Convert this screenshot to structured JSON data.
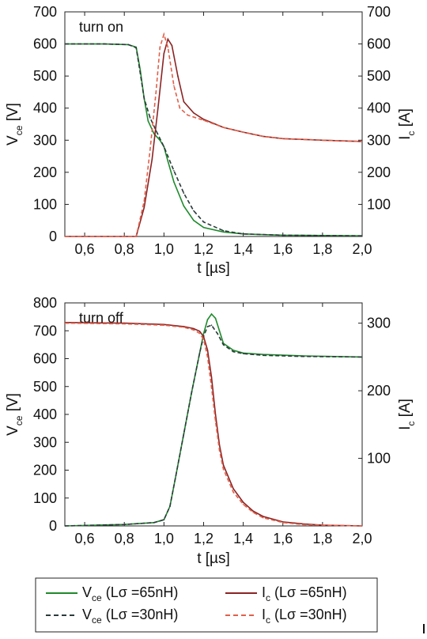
{
  "colors": {
    "vce_65": "#1f8a2c",
    "vce_30": "#2a3a3a",
    "ic_65": "#8b2323",
    "ic_30": "#e0604a"
  },
  "legend": [
    {
      "symbol": "V",
      "sub": "ce",
      "text": " (Lσ =65nH)",
      "color_key": "vce_65",
      "dash": false
    },
    {
      "symbol": "I",
      "sub": "c",
      "text": " (Lσ =65nH)",
      "color_key": "ic_65",
      "dash": false
    },
    {
      "symbol": "V",
      "sub": "ce",
      "text": " (Lσ =30nH)",
      "color_key": "vce_30",
      "dash": true
    },
    {
      "symbol": "I",
      "sub": "c",
      "text": " (Lσ =30nH)",
      "color_key": "ic_30",
      "dash": true
    }
  ],
  "chart_data": [
    {
      "type": "line",
      "panel_label": "turn on",
      "xlabel": "t [µs]",
      "ylabel_left": {
        "symbol": "V",
        "sub": "ce",
        "unit": " [V]"
      },
      "ylabel_right": {
        "symbol": "I",
        "sub": "c",
        "unit": " [A]"
      },
      "xlim": [
        0.5,
        2.0
      ],
      "ylim_left": [
        0,
        700
      ],
      "ylim_right": [
        0,
        700
      ],
      "xticks": [
        "0,6",
        "0,8",
        "1,0",
        "1,2",
        "1,4",
        "1,6",
        "1,8",
        "2,0"
      ],
      "xtick_values": [
        0.6,
        0.8,
        1.0,
        1.2,
        1.4,
        1.6,
        1.8,
        2.0
      ],
      "yticks_left": [
        0,
        100,
        200,
        300,
        400,
        500,
        600,
        700
      ],
      "yticks_right": [
        100,
        200,
        300,
        400,
        500,
        600,
        700
      ],
      "series": [
        {
          "name": "Vce (Lσ =65nH)",
          "axis": "left",
          "color_key": "vce_65",
          "dash": false,
          "x": [
            0.5,
            0.7,
            0.82,
            0.86,
            0.88,
            0.9,
            0.92,
            0.95,
            0.98,
            1.0,
            1.02,
            1.05,
            1.1,
            1.15,
            1.2,
            1.3,
            1.4,
            1.6,
            2.0
          ],
          "y": [
            600,
            600,
            598,
            590,
            520,
            430,
            360,
            320,
            300,
            280,
            235,
            170,
            95,
            50,
            28,
            14,
            8,
            4,
            2
          ]
        },
        {
          "name": "Vce (Lσ =30nH)",
          "axis": "left",
          "color_key": "vce_30",
          "dash": true,
          "x": [
            0.5,
            0.7,
            0.82,
            0.86,
            0.88,
            0.9,
            0.93,
            0.96,
            1.0,
            1.05,
            1.1,
            1.15,
            1.2,
            1.3,
            1.4,
            1.6,
            2.0
          ],
          "y": [
            600,
            600,
            598,
            588,
            510,
            430,
            370,
            330,
            280,
            205,
            135,
            80,
            45,
            18,
            8,
            4,
            2
          ]
        },
        {
          "name": "Ic (Lσ =65nH)",
          "axis": "right",
          "color_key": "ic_65",
          "dash": false,
          "x": [
            0.5,
            0.8,
            0.86,
            0.9,
            0.94,
            0.97,
            1.0,
            1.02,
            1.04,
            1.07,
            1.1,
            1.15,
            1.2,
            1.3,
            1.4,
            1.5,
            1.6,
            1.8,
            2.0
          ],
          "y": [
            0,
            0,
            0,
            90,
            240,
            400,
            570,
            615,
            595,
            500,
            420,
            385,
            365,
            340,
            325,
            312,
            305,
            300,
            296
          ]
        },
        {
          "name": "Ic (Lσ =30nH)",
          "axis": "right",
          "color_key": "ic_30",
          "dash": true,
          "x": [
            0.5,
            0.8,
            0.86,
            0.9,
            0.93,
            0.96,
            0.98,
            1.0,
            1.02,
            1.05,
            1.08,
            1.12,
            1.2,
            1.3,
            1.4,
            1.5,
            1.6,
            1.8,
            2.0
          ],
          "y": [
            0,
            0,
            0,
            110,
            270,
            450,
            590,
            630,
            590,
            470,
            400,
            378,
            362,
            340,
            325,
            312,
            305,
            300,
            296
          ]
        }
      ]
    },
    {
      "type": "line",
      "panel_label": "turn off",
      "xlabel": "t [µs]",
      "ylabel_left": {
        "symbol": "V",
        "sub": "ce",
        "unit": " [V]"
      },
      "ylabel_right": {
        "symbol": "I",
        "sub": "c",
        "unit": " [A]"
      },
      "xlim": [
        0.5,
        2.0
      ],
      "ylim_left": [
        0,
        800
      ],
      "ylim_right": [
        0,
        330
      ],
      "xticks": [
        "0,6",
        "0,8",
        "1,0",
        "1,2",
        "1,4",
        "1,6",
        "1,8",
        "2,0"
      ],
      "xtick_values": [
        0.6,
        0.8,
        1.0,
        1.2,
        1.4,
        1.6,
        1.8,
        2.0
      ],
      "yticks_left": [
        0,
        100,
        200,
        300,
        400,
        500,
        600,
        700,
        800
      ],
      "yticks_right": [
        100,
        200,
        300
      ],
      "series": [
        {
          "name": "Vce (Lσ =65nH)",
          "axis": "left",
          "color_key": "vce_65",
          "dash": false,
          "x": [
            0.5,
            0.8,
            0.95,
            1.0,
            1.03,
            1.06,
            1.1,
            1.14,
            1.18,
            1.2,
            1.22,
            1.24,
            1.26,
            1.28,
            1.3,
            1.35,
            1.4,
            1.5,
            1.7,
            2.0
          ],
          "y": [
            0,
            5,
            12,
            22,
            70,
            180,
            330,
            480,
            620,
            690,
            740,
            760,
            745,
            700,
            655,
            630,
            620,
            615,
            610,
            606
          ]
        },
        {
          "name": "Vce (Lσ =30nH)",
          "axis": "left",
          "color_key": "vce_30",
          "dash": true,
          "x": [
            0.5,
            0.8,
            0.95,
            1.0,
            1.03,
            1.06,
            1.1,
            1.14,
            1.18,
            1.2,
            1.22,
            1.24,
            1.27,
            1.3,
            1.35,
            1.4,
            1.5,
            1.7,
            2.0
          ],
          "y": [
            0,
            5,
            12,
            22,
            70,
            180,
            330,
            480,
            620,
            680,
            715,
            720,
            690,
            650,
            625,
            618,
            612,
            608,
            606
          ]
        },
        {
          "name": "Ic (Lσ =65nH)",
          "axis": "right",
          "color_key": "ic_65",
          "dash": false,
          "x": [
            0.5,
            0.8,
            1.0,
            1.1,
            1.15,
            1.18,
            1.2,
            1.22,
            1.24,
            1.26,
            1.28,
            1.3,
            1.35,
            1.4,
            1.45,
            1.5,
            1.6,
            1.7,
            1.8,
            2.0
          ],
          "y": [
            301,
            300,
            298,
            295,
            292,
            288,
            280,
            260,
            220,
            165,
            120,
            90,
            55,
            35,
            22,
            14,
            6,
            3,
            1,
            0
          ]
        },
        {
          "name": "Ic (Lσ =30nH)",
          "axis": "right",
          "color_key": "ic_30",
          "dash": true,
          "x": [
            0.5,
            0.8,
            1.0,
            1.1,
            1.15,
            1.18,
            1.2,
            1.22,
            1.24,
            1.26,
            1.28,
            1.3,
            1.35,
            1.4,
            1.45,
            1.5,
            1.6,
            1.7,
            1.8,
            2.0
          ],
          "y": [
            300,
            299,
            297,
            294,
            290,
            285,
            276,
            250,
            205,
            155,
            112,
            84,
            50,
            32,
            20,
            12,
            5,
            2,
            1,
            0
          ]
        }
      ]
    }
  ]
}
